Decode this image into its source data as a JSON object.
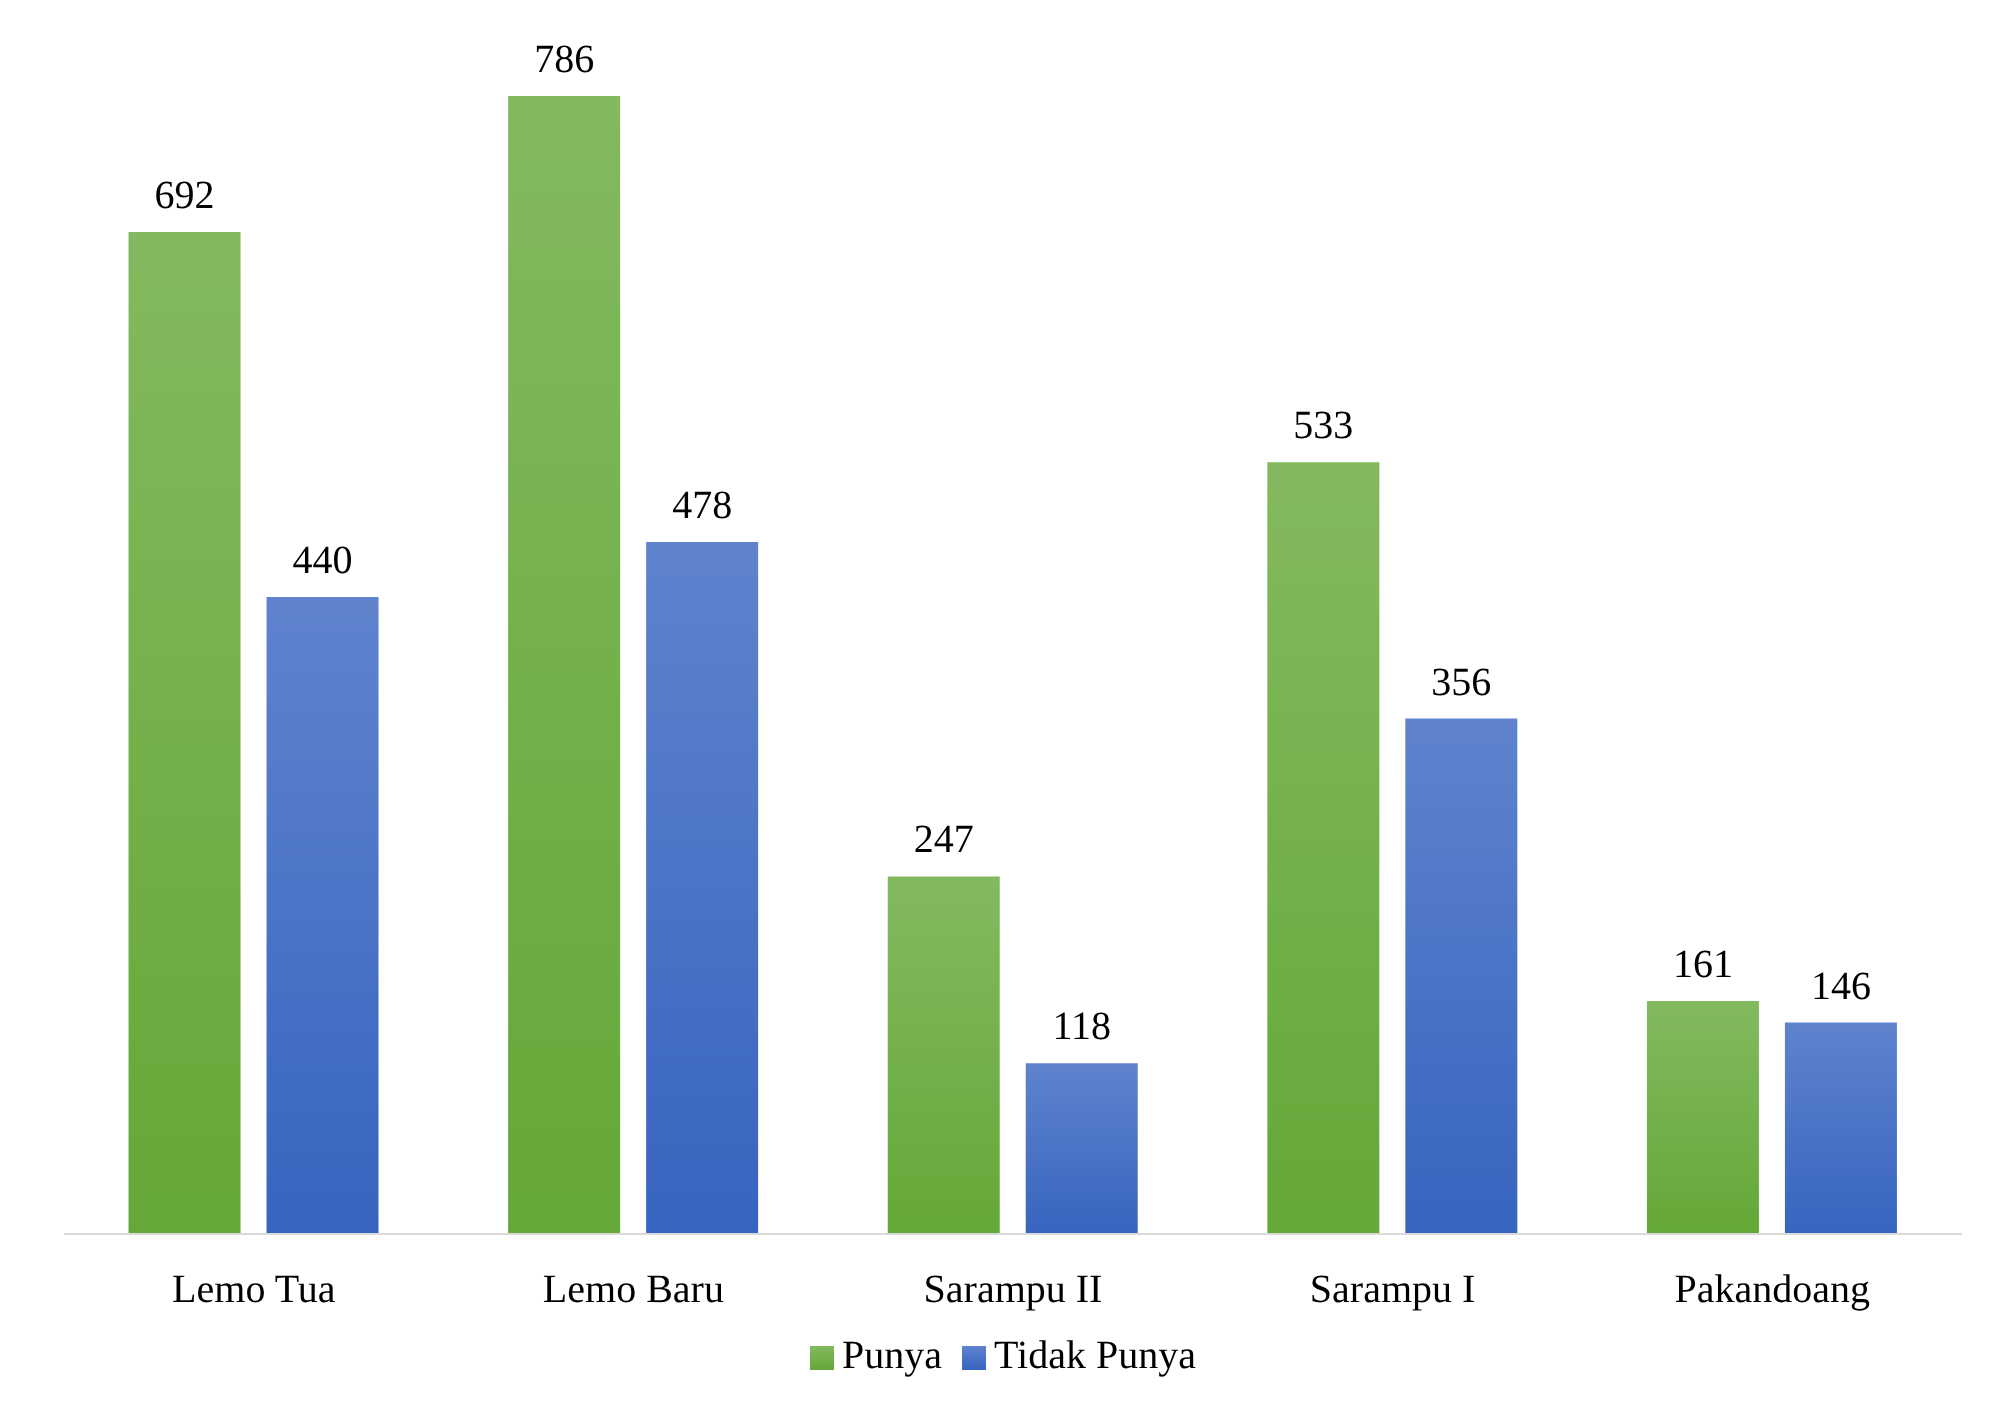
{
  "chart_data": {
    "type": "bar",
    "categories": [
      "Lemo Tua",
      "Lemo Baru",
      "Sarampu II",
      "Sarampu I",
      "Pakandoang"
    ],
    "series": [
      {
        "name": "Punya",
        "color": "#64a837",
        "values": [
          692,
          786,
          247,
          533,
          161
        ]
      },
      {
        "name": "Tidak Punya",
        "color": "#3764c0",
        "values": [
          440,
          478,
          118,
          356,
          146
        ]
      }
    ],
    "data_labels": true,
    "legend": "bottom",
    "grid": false
  }
}
